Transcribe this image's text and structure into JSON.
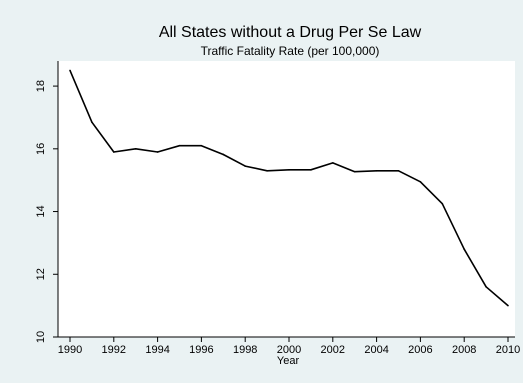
{
  "chart_data": {
    "type": "line",
    "title": "All States without a Drug Per Se Law",
    "subtitle": "Traffic Fatality Rate (per 100,000)",
    "xlabel": "Year",
    "ylabel": "",
    "xlim": [
      1990,
      2010
    ],
    "ylim": [
      10,
      18.8
    ],
    "x_ticks": [
      1990,
      1992,
      1994,
      1996,
      1998,
      2000,
      2002,
      2004,
      2006,
      2008,
      2010
    ],
    "y_ticks": [
      10,
      12,
      14,
      16,
      18
    ],
    "grid": false,
    "legend": "none",
    "colors": {
      "background": "#eaf2f3",
      "plot_area": "#ffffff",
      "line": "#000000"
    },
    "series": [
      {
        "x": [
          1990,
          1991,
          1992,
          1993,
          1994,
          1995,
          1996,
          1997,
          1998,
          1999,
          2000,
          2001,
          2002,
          2003,
          2004,
          2005,
          2006,
          2007,
          2008,
          2009,
          2010
        ],
        "values": [
          18.5,
          16.85,
          15.9,
          16.0,
          15.9,
          16.1,
          16.1,
          15.82,
          15.45,
          15.3,
          15.33,
          15.33,
          15.55,
          15.27,
          15.3,
          15.3,
          14.95,
          14.25,
          12.8,
          11.6,
          11.0
        ]
      }
    ]
  }
}
